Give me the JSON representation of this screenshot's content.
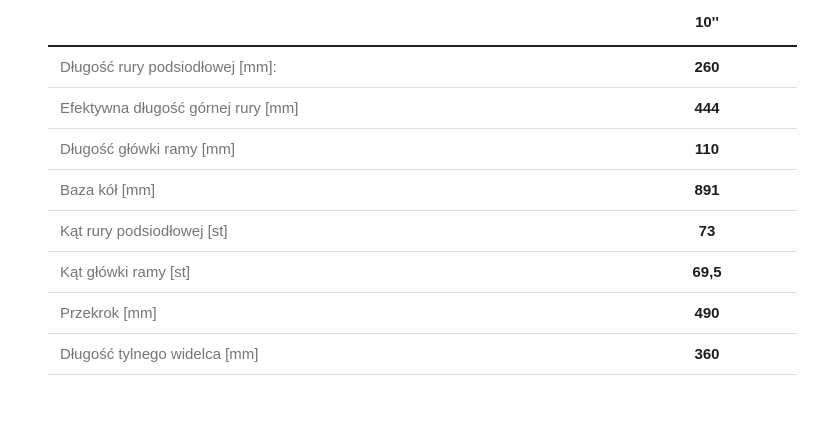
{
  "table": {
    "name": "frame-geometry-spec-table",
    "header": {
      "size_label": "10''"
    },
    "rows": [
      {
        "label": "Długość rury podsiodłowej [mm]:",
        "value": "260"
      },
      {
        "label": "Efektywna długość górnej rury [mm]",
        "value": "444"
      },
      {
        "label": "Długość główki ramy [mm]",
        "value": "110"
      },
      {
        "label": "Baza kół [mm]",
        "value": "891"
      },
      {
        "label": "Kąt rury podsiodłowej [st]",
        "value": "73"
      },
      {
        "label": "Kąt główki ramy [st]",
        "value": "69,5"
      },
      {
        "label": "Przekrok [mm]",
        "value": "490"
      },
      {
        "label": "Długość tylnego widelca [mm]",
        "value": "360"
      }
    ],
    "colors": {
      "header_border": "#212121",
      "row_border": "#dddddd",
      "label_text": "#767679",
      "value_text": "#1c1c1e",
      "background": "#ffffff"
    }
  }
}
